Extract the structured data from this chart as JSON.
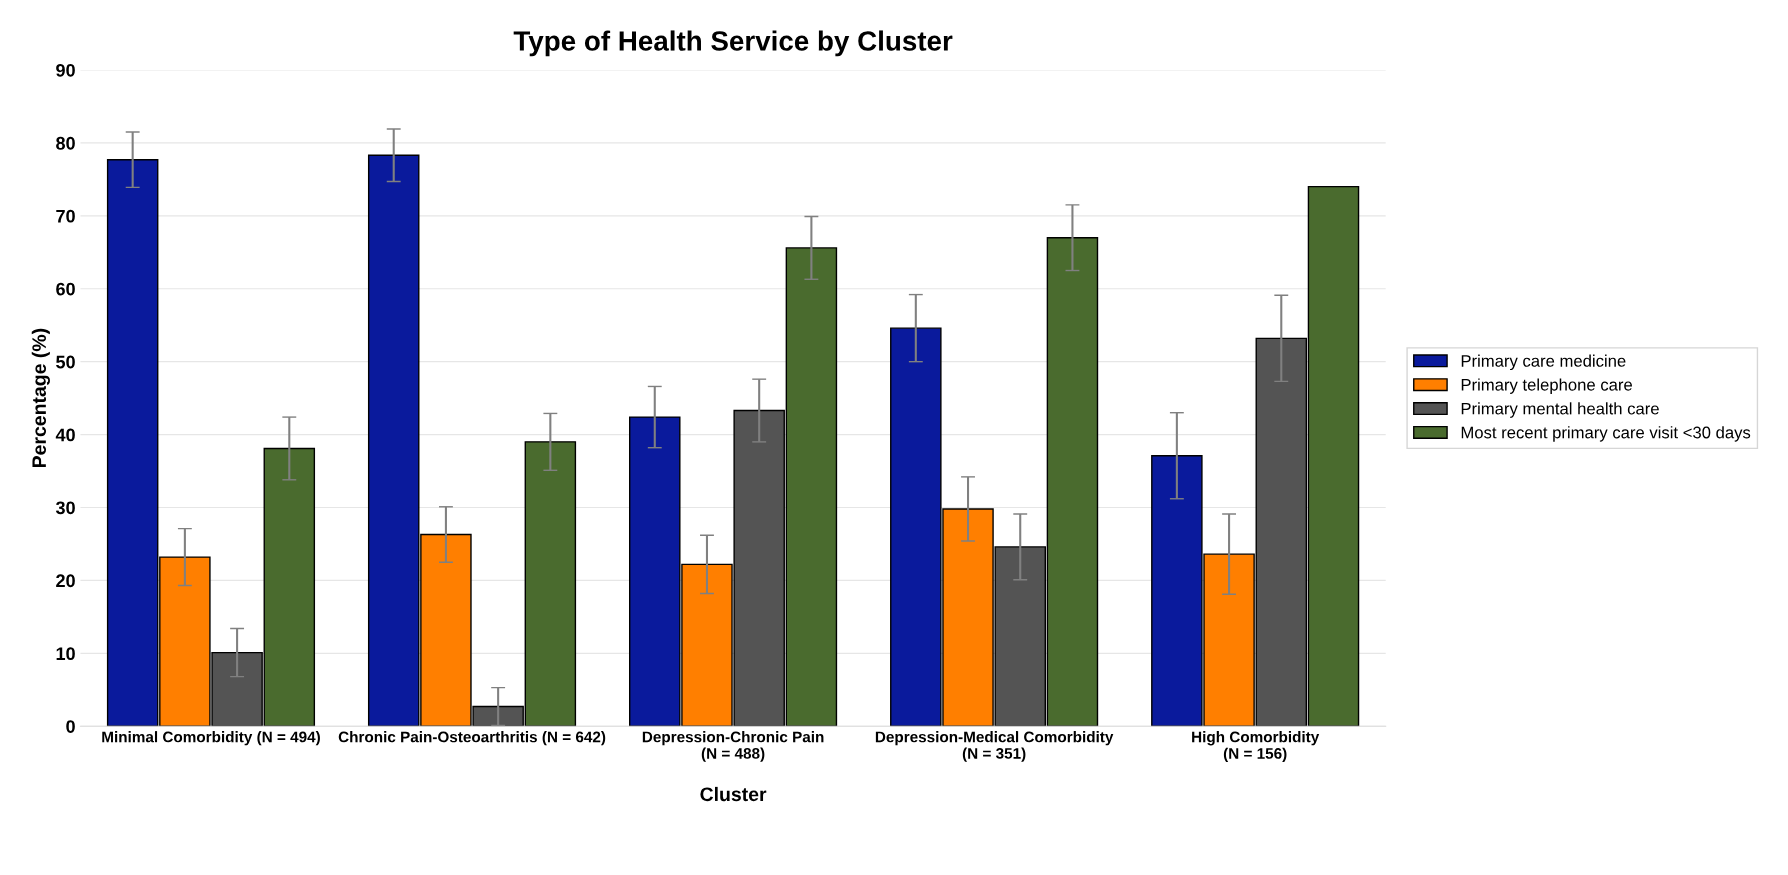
{
  "chart_data": {
    "type": "bar",
    "title": "Type of Health Service by Cluster",
    "xlabel": "Cluster",
    "ylabel": "Percentage (%)",
    "categories": [
      "Minimal Comorbidity (N = 494)",
      "Chronic Pain-Osteoarthritis (N = 642)",
      "Depression-Chronic Pain\n(N = 488)",
      "Depression-Medical Comorbidity\n(N = 351)",
      "High Comorbidity\n(N = 156)"
    ],
    "series": [
      {
        "name": "Primary care medicine",
        "color": "#0a1a9c",
        "values": [
          77.7,
          78.3,
          42.4,
          54.6,
          37.1
        ],
        "errors": [
          3.8,
          3.6,
          4.2,
          4.6,
          5.9
        ]
      },
      {
        "name": "Primary telephone care",
        "color": "#ff7f00",
        "values": [
          23.2,
          26.3,
          22.2,
          29.8,
          23.6
        ],
        "errors": [
          3.9,
          3.8,
          4.0,
          4.4,
          5.5
        ]
      },
      {
        "name": "Primary mental health care",
        "color": "#545454",
        "values": [
          10.1,
          2.7,
          43.3,
          24.6,
          53.2
        ],
        "errors": [
          3.3,
          2.6,
          4.3,
          4.5,
          5.9
        ]
      },
      {
        "name": "Most recent primary care visit <30 days",
        "color": "#4a6b2e",
        "values": [
          38.1,
          39.0,
          65.6,
          67.0,
          74
        ],
        "errors": [
          4.3,
          3.9,
          4.3,
          4.5,
          null
        ]
      }
    ],
    "ylim": [
      0,
      90
    ],
    "yticks": [
      0,
      10,
      20,
      30,
      40,
      50,
      60,
      70,
      80,
      90
    ],
    "grid": "y",
    "legend": "right"
  }
}
